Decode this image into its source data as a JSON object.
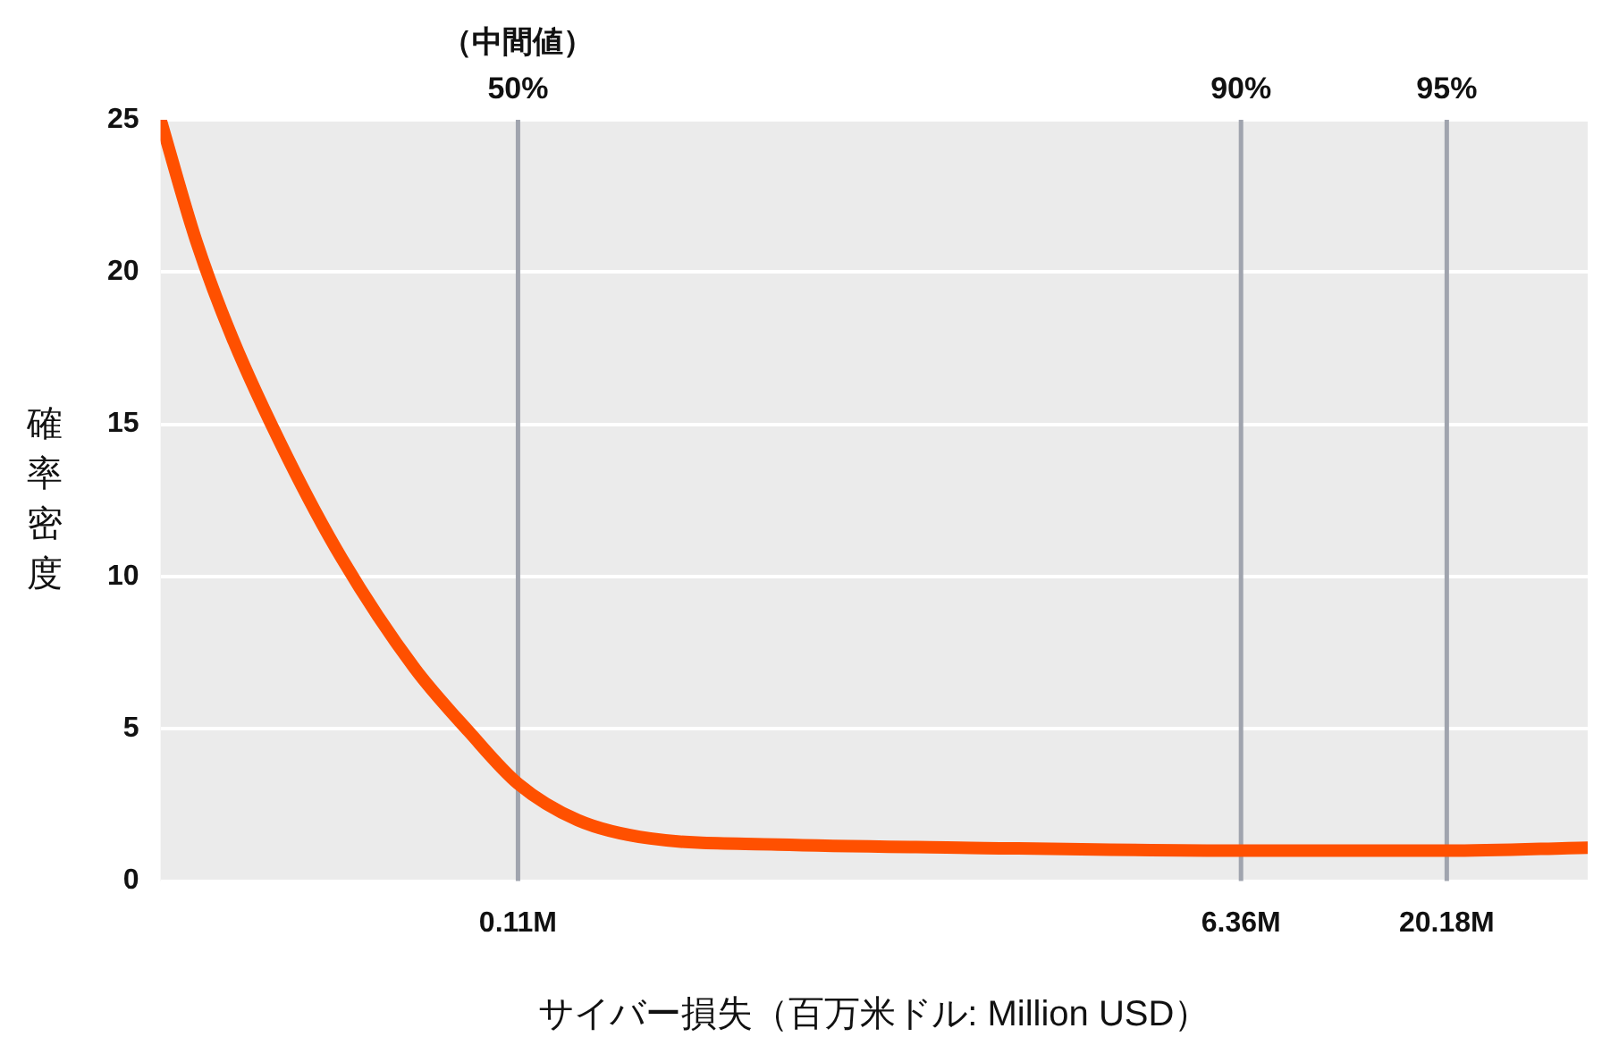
{
  "chart_data": {
    "type": "line",
    "xlabel": "サイバー損失（百万米ドル: Million USD）",
    "ylabel": "確率密度",
    "log": "x",
    "grid": "y",
    "marker": "none",
    "line_style": "solid",
    "xlim": [
      0.0148,
      44.5
    ],
    "xticks": [
      {
        "value": 0.11,
        "label": "0.11M"
      },
      {
        "value": 6.36,
        "label": "6.36M"
      },
      {
        "value": 20.18,
        "label": "20.18M"
      }
    ],
    "ylim": [
      0,
      25
    ],
    "yticks": [
      0,
      5,
      10,
      15,
      20,
      25
    ],
    "series": [
      {
        "color": "#ff5000",
        "x": [
          0.0148,
          0.0181,
          0.0222,
          0.0302,
          0.0409,
          0.0615,
          0.0836,
          0.11,
          0.154,
          0.231,
          0.472,
          1.31,
          6.36,
          20.18,
          44.5
        ],
        "values": [
          25,
          21,
          17.8,
          13.9,
          10.6,
          7,
          4.9,
          3.2,
          2.0,
          1.4,
          1.2,
          1.1,
          1.0,
          1.0,
          1.1
        ]
      }
    ],
    "ref_lines": [
      {
        "axis": "x",
        "value": 0.11,
        "color": "#a0a4ae"
      },
      {
        "axis": "x",
        "value": 6.36,
        "color": "#a0a4ae"
      },
      {
        "axis": "x",
        "value": 20.18,
        "color": "#a0a4ae"
      }
    ],
    "annotations": [
      "（中間値）",
      "50%",
      "90%",
      "95%"
    ]
  }
}
